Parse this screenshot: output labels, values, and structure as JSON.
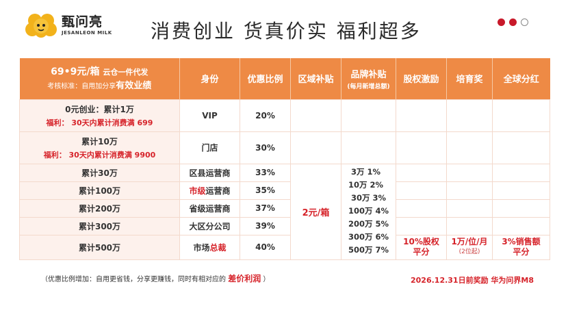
{
  "brand": {
    "name_cn": "甄问亮",
    "name_en": "JESANLEON MILK"
  },
  "title": "消费创业  货真价实  福利超多",
  "pager": {
    "dots": [
      "filled",
      "filled",
      "empty"
    ]
  },
  "table": {
    "header": {
      "col1_line1": "69•9元/箱",
      "col1_line1_small": "云仓一件代发",
      "col1_line2_prefix": "考核标准：自用加分享",
      "col1_line2_bold": "有效业绩",
      "identity": "身份",
      "ratio": "优惠比例",
      "region": "区域补贴",
      "brand_sub": "品牌补贴",
      "brand_sub_note": "(每月新增总额)",
      "equity": "股权激励",
      "cultivate": "培育奖",
      "global": "全球分红"
    },
    "rows": [
      {
        "label": "0元创业：累计1万",
        "welfare": "福利： 30天内累计消费满 699",
        "role": "VIP",
        "ratio": "20%"
      },
      {
        "label": "累计10万",
        "welfare": "福利： 30天内累计消费满 9900",
        "role": "门店",
        "ratio": "30%"
      },
      {
        "label": "累计30万",
        "role": "区县运营商",
        "ratio": "33%"
      },
      {
        "label": "累计100万",
        "role_red": "市级",
        "role_rest": "运营商",
        "ratio": "35%"
      },
      {
        "label": "累计200万",
        "role": "省级运营商",
        "ratio": "37%"
      },
      {
        "label": "累计300万",
        "role": "大区分公司",
        "ratio": "39%"
      },
      {
        "label": "累计500万",
        "role_rest": "市场",
        "role_red": "总裁",
        "ratio": "40%"
      }
    ],
    "region_subsidy": "2元/箱",
    "brand_tiers": [
      "3万   1%",
      "10万   2%",
      "30万  3%",
      "100万  4%",
      "200万  5%",
      "300万  6%",
      "500万  7%"
    ],
    "equity_bonus": {
      "line1": "10%股权",
      "line2": "平分"
    },
    "cultivate_bonus": {
      "line1": "1万/位/月",
      "line2": "(2位起)"
    },
    "global_bonus": {
      "line1": "3%销售额",
      "line2": "平分"
    }
  },
  "footer": {
    "note_prefix": "（优惠比例增加：自用更省钱，分享更赚钱，同时有相对应的",
    "note_highlight": "差价利润",
    "note_suffix": "）",
    "right": "2026.12.31日前奖励  华为问界M8"
  },
  "colors": {
    "accent_orange": "#ee8a45",
    "accent_red": "#d6232a",
    "row_tint": "#fdf1ec"
  }
}
